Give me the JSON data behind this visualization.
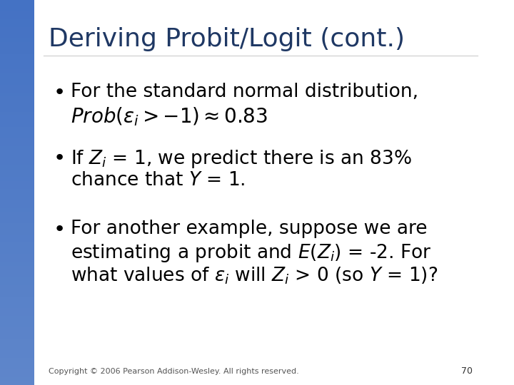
{
  "title": "Deriving Probit/Logit (cont.)",
  "title_color": "#1F3864",
  "title_fontsize": 26,
  "background_color": "#FFFFFF",
  "left_panel_color": "#4472C4",
  "bullet_color": "#000000",
  "bullet_fontsize": 19,
  "footer_text": "Copyright © 2006 Pearson Addison-Wesley. All rights reserved.",
  "footer_page": "70",
  "footer_fontsize": 8,
  "left_bar_width": 0.07
}
